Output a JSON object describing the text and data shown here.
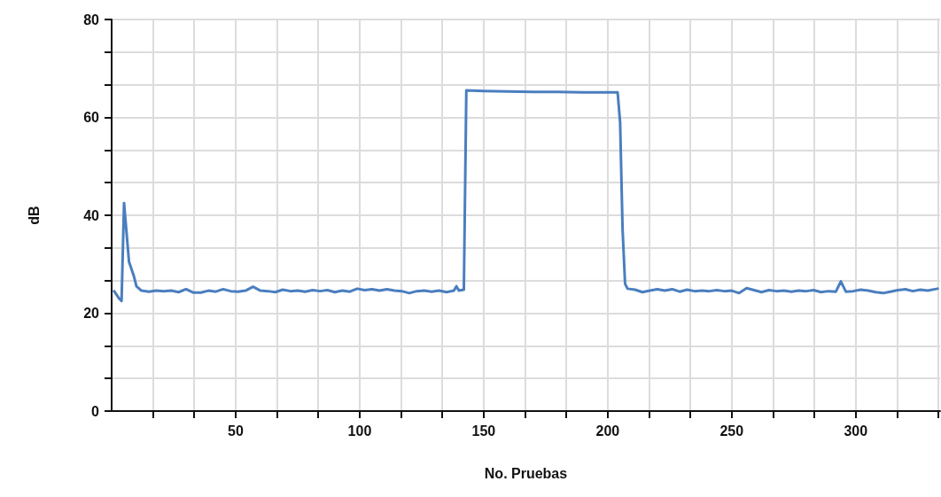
{
  "chart_data": {
    "type": "line",
    "xlabel": "No. Pruebas",
    "ylabel": "dB",
    "xlim": [
      0,
      334
    ],
    "ylim": [
      0,
      80
    ],
    "xticks": [
      {
        "value": 16.7,
        "label": null
      },
      {
        "value": 33.3,
        "label": null
      },
      50,
      {
        "value": 66.7,
        "label": null
      },
      {
        "value": 83.3,
        "label": null
      },
      100,
      {
        "value": 116.7,
        "label": null
      },
      {
        "value": 133.3,
        "label": null
      },
      150,
      {
        "value": 166.7,
        "label": null
      },
      {
        "value": 183.3,
        "label": null
      },
      200,
      {
        "value": 216.7,
        "label": null
      },
      {
        "value": 233.3,
        "label": null
      },
      250,
      {
        "value": 266.7,
        "label": null
      },
      {
        "value": 283.3,
        "label": null
      },
      300,
      {
        "value": 316.7,
        "label": null
      },
      {
        "value": 333.3,
        "label": null
      }
    ],
    "yticks": [
      0,
      {
        "value": 6.7,
        "label": null
      },
      {
        "value": 13.3,
        "label": null
      },
      20,
      {
        "value": 26.7,
        "label": null
      },
      {
        "value": 33.3,
        "label": null
      },
      40,
      {
        "value": 46.7,
        "label": null
      },
      {
        "value": 53.3,
        "label": null
      },
      60,
      {
        "value": 66.7,
        "label": null
      },
      {
        "value": 73.3,
        "label": null
      },
      80
    ],
    "grid": true,
    "marker": "none",
    "line_style": "solid",
    "series": [
      {
        "color": "#4a7ebf",
        "x": [
          1,
          3,
          4,
          5,
          7,
          9,
          10,
          12,
          15,
          18,
          21,
          24,
          27,
          30,
          33,
          36,
          39,
          42,
          45,
          48,
          51,
          54,
          57,
          60,
          63,
          66,
          69,
          72,
          75,
          78,
          81,
          84,
          87,
          90,
          93,
          96,
          99,
          102,
          105,
          108,
          111,
          114,
          117,
          120,
          123,
          126,
          129,
          132,
          135,
          138,
          139,
          140,
          142,
          143,
          150,
          160,
          170,
          180,
          190,
          200,
          204,
          205,
          206,
          207,
          208,
          211,
          214,
          217,
          220,
          223,
          226,
          229,
          232,
          235,
          238,
          241,
          244,
          247,
          250,
          253,
          256,
          259,
          262,
          265,
          268,
          271,
          274,
          277,
          280,
          283,
          286,
          289,
          292,
          294,
          296,
          299,
          302,
          305,
          308,
          311,
          314,
          317,
          320,
          323,
          326,
          329,
          333
        ],
        "values": [
          24.5,
          23,
          22.5,
          42.5,
          30.5,
          27.5,
          25.5,
          24.6,
          24.4,
          24.6,
          24.5,
          24.6,
          24.3,
          24.9,
          24.2,
          24.2,
          24.6,
          24.4,
          24.9,
          24.5,
          24.4,
          24.6,
          25.4,
          24.6,
          24.5,
          24.3,
          24.8,
          24.5,
          24.6,
          24.4,
          24.7,
          24.5,
          24.7,
          24.3,
          24.6,
          24.4,
          25.0,
          24.7,
          24.9,
          24.6,
          24.9,
          24.6,
          24.5,
          24.1,
          24.5,
          24.6,
          24.4,
          24.6,
          24.3,
          24.6,
          25.5,
          24.6,
          24.8,
          65.5,
          65.4,
          65.3,
          65.2,
          65.2,
          65.1,
          65.1,
          65.1,
          59,
          37,
          26,
          25,
          24.8,
          24.3,
          24.6,
          24.9,
          24.6,
          24.9,
          24.4,
          24.8,
          24.5,
          24.6,
          24.5,
          24.7,
          24.5,
          24.6,
          24.1,
          25.1,
          24.7,
          24.3,
          24.7,
          24.5,
          24.6,
          24.4,
          24.6,
          24.5,
          24.7,
          24.3,
          24.5,
          24.4,
          26.5,
          24.4,
          24.5,
          24.8,
          24.6,
          24.3,
          24.1,
          24.4,
          24.7,
          24.9,
          24.5,
          24.8,
          24.6,
          25.0
        ]
      }
    ]
  }
}
